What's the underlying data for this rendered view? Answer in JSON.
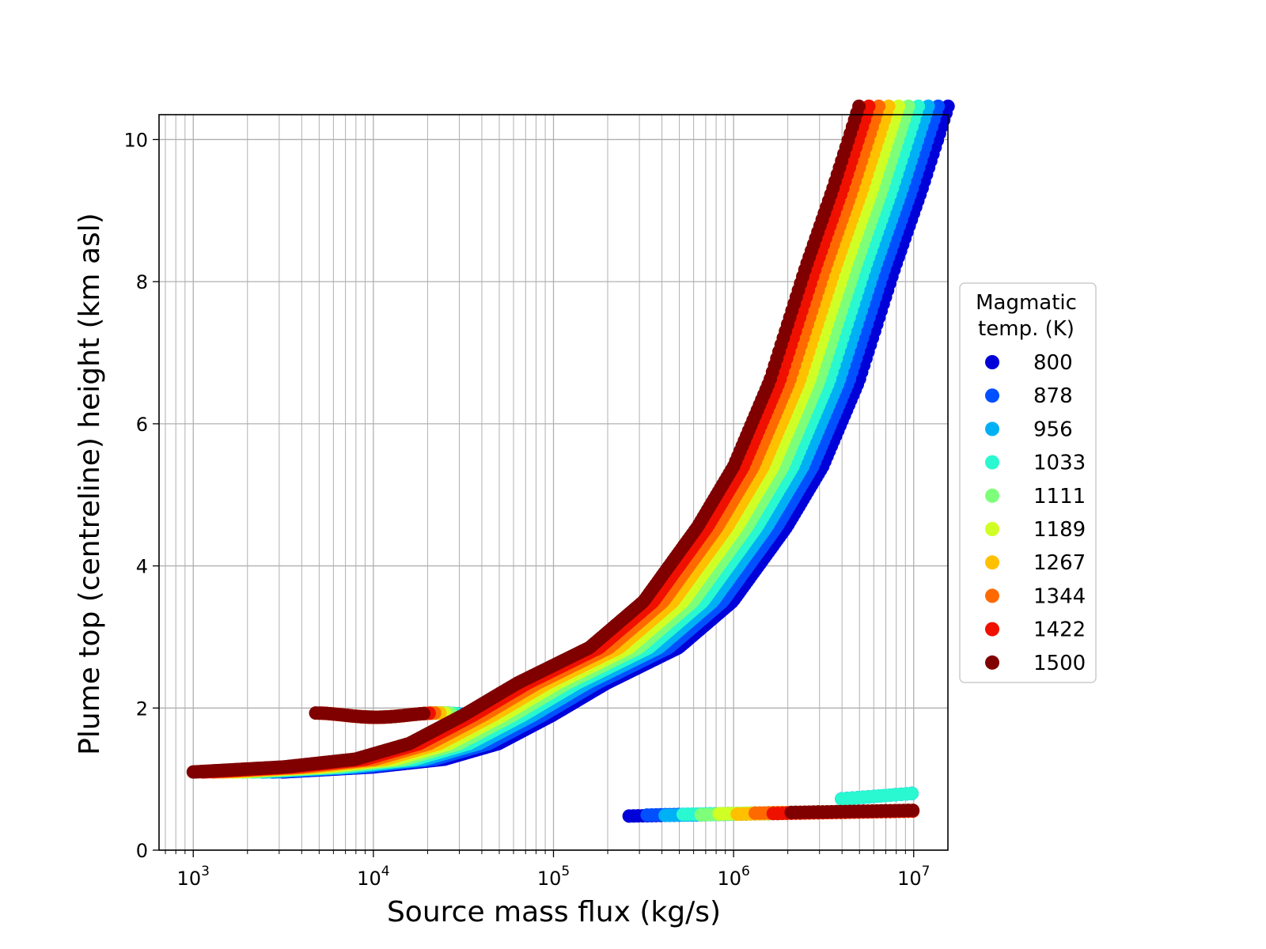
{
  "chart_data": {
    "type": "scatter",
    "title": "",
    "xlabel": "Source mass flux (kg/s)",
    "ylabel": "Plume top (centreline) height (km asl)",
    "xscale": "log",
    "xlim": [
      650,
      15500
    ],
    "xlim_exp": [
      2.81,
      7.19
    ],
    "ylim": [
      0,
      10.35
    ],
    "grid": true,
    "x_ticks": [
      {
        "base": "10",
        "exp": "3",
        "value": 1000
      },
      {
        "base": "10",
        "exp": "4",
        "value": 10000
      },
      {
        "base": "10",
        "exp": "5",
        "value": 100000
      },
      {
        "base": "10",
        "exp": "6",
        "value": 1000000
      },
      {
        "base": "10",
        "exp": "7",
        "value": 10000000
      }
    ],
    "y_ticks": [
      "0",
      "2",
      "4",
      "6",
      "8",
      "10"
    ],
    "legend": {
      "title_lines": [
        "Magmatic",
        "temp. (K)"
      ],
      "placement": "right-outside"
    },
    "series": [
      {
        "name": "800",
        "color": "#0000d8"
      },
      {
        "name": "878",
        "color": "#0050ff"
      },
      {
        "name": "956",
        "color": "#00b0f5"
      },
      {
        "name": "1033",
        "color": "#29f8d0"
      },
      {
        "name": "1111",
        "color": "#7dff7a"
      },
      {
        "name": "1189",
        "color": "#d0ff26"
      },
      {
        "name": "1267",
        "color": "#ffc000"
      },
      {
        "name": "1344",
        "color": "#ff6a00"
      },
      {
        "name": "1422",
        "color": "#f01000"
      },
      {
        "name": "1500",
        "color": "#800000"
      }
    ],
    "main_branch_exp": [
      3.0,
      3.5,
      3.9,
      4.2,
      4.5,
      4.8,
      5.0,
      5.2,
      5.5,
      5.8,
      6.0,
      6.2,
      6.4,
      6.55,
      6.7
    ],
    "main_branch_height": [
      1.1,
      1.17,
      1.28,
      1.5,
      1.9,
      2.35,
      2.6,
      2.85,
      3.5,
      4.55,
      5.4,
      6.6,
      8.2,
      9.3,
      10.5
    ],
    "branch_exp_offset_per_series": -0.05,
    "secondary_branch": {
      "exp_range": [
        3.95,
        4.55
      ],
      "height": 1.9,
      "exp_offset_per_series": -0.03
    },
    "low_branch": {
      "exp_range": [
        5.42,
        7.0
      ],
      "height_range": [
        0.48,
        0.55
      ],
      "exp_start_offset_per_series": 0.1
    },
    "low_branch_high": {
      "exp_range": [
        6.6,
        7.0
      ],
      "height_range": [
        0.72,
        0.8
      ]
    }
  }
}
